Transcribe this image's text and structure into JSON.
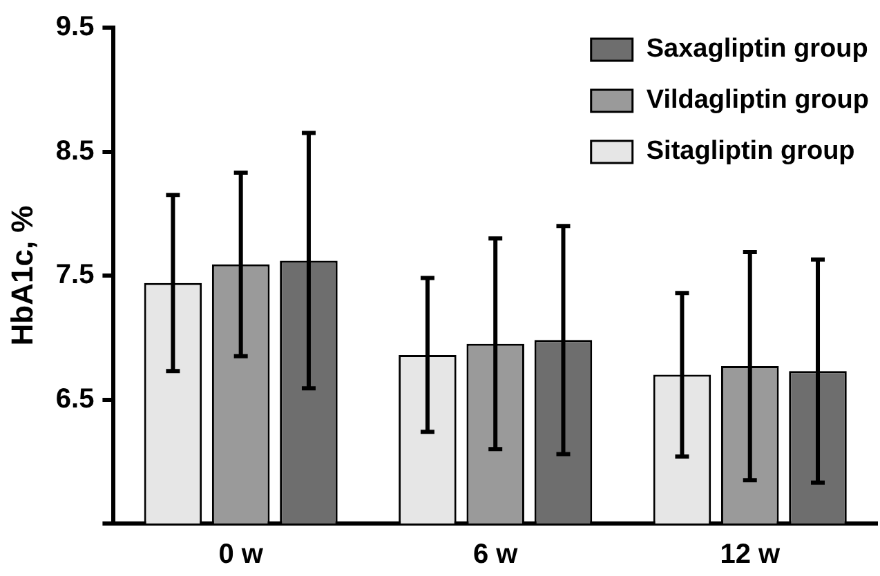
{
  "chart_data": {
    "type": "bar",
    "ylabel": "HbA1c, %",
    "categories": [
      "0 w",
      "6 w",
      "12 w"
    ],
    "series": [
      {
        "name": "Sitagliptin group",
        "color": "#e6e6e6",
        "values": [
          7.44,
          6.86,
          6.7
        ],
        "errors": [
          0.71,
          0.62,
          0.66
        ]
      },
      {
        "name": "Vildagliptin group",
        "color": "#9a9a9a",
        "values": [
          7.59,
          6.95,
          6.77
        ],
        "errors": [
          0.74,
          0.85,
          0.92
        ]
      },
      {
        "name": "Saxagliptin group",
        "color": "#6e6e6e",
        "values": [
          7.62,
          6.98,
          6.73
        ],
        "errors": [
          1.03,
          0.92,
          0.9
        ]
      }
    ],
    "ylim": [
      5.5,
      9.5
    ],
    "yticks": [
      {
        "value": 5.5,
        "label": null
      },
      6.5,
      7.5,
      8.5,
      9.5
    ],
    "grid": false,
    "legend": "top right"
  }
}
